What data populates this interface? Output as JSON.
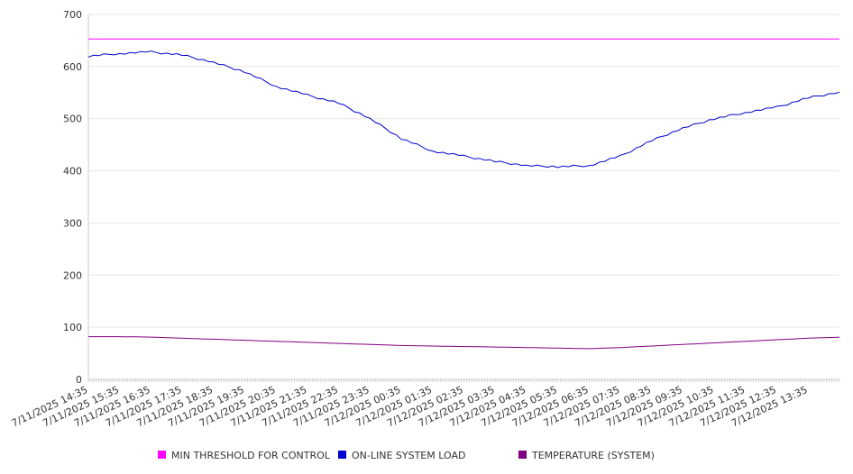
{
  "chart_data": {
    "type": "line",
    "title": "",
    "xlabel": "",
    "ylabel": "",
    "ylim": [
      0,
      700
    ],
    "yticks": [
      0,
      100,
      200,
      300,
      400,
      500,
      600,
      700
    ],
    "grid": true,
    "legend_position": "bottom",
    "x": [
      "7/11/2025 14:35",
      "7/11/2025 15:35",
      "7/11/2025 16:35",
      "7/11/2025 17:35",
      "7/11/2025 18:35",
      "7/11/2025 19:35",
      "7/11/2025 20:35",
      "7/11/2025 21:35",
      "7/11/2025 22:35",
      "7/11/2025 23:35",
      "7/12/2025 00:35",
      "7/12/2025 01:35",
      "7/12/2025 02:35",
      "7/12/2025 03:35",
      "7/12/2025 04:35",
      "7/12/2025 05:35",
      "7/12/2025 06:35",
      "7/12/2025 07:35",
      "7/12/2025 08:35",
      "7/12/2025 09:35",
      "7/12/2025 10:35",
      "7/12/2025 11:35",
      "7/12/2025 12:35",
      "7/12/2025 13:35"
    ],
    "series": [
      {
        "name": "MIN THRESHOLD FOR CONTROL",
        "color": "#ff00ff",
        "values": [
          653,
          653,
          653,
          653,
          653,
          653,
          653,
          653,
          653,
          653,
          653,
          653,
          653,
          653,
          653,
          653,
          653,
          653,
          653,
          653,
          653,
          653,
          653,
          653
        ]
      },
      {
        "name": "ON-LINE SYSTEM LOAD",
        "color": "#0000cc",
        "values": [
          620,
          625,
          628,
          622,
          608,
          590,
          562,
          545,
          530,
          500,
          462,
          438,
          428,
          418,
          410,
          408,
          410,
          428,
          458,
          482,
          500,
          512,
          522,
          540
        ]
      },
      {
        "name": "TEMPERATURE (SYSTEM)",
        "color": "#800080",
        "values": [
          82,
          82,
          81,
          79,
          77,
          75,
          73,
          71,
          69,
          67,
          65,
          64,
          63,
          62,
          61,
          60,
          59,
          61,
          64,
          67,
          70,
          73,
          76,
          79
        ]
      }
    ]
  }
}
